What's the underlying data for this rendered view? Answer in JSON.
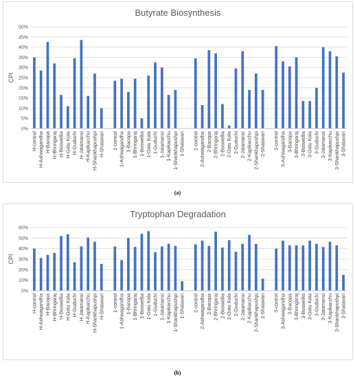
{
  "chart_data": [
    {
      "type": "bar",
      "title": "Butyrate Biosynthesis",
      "ylabel": "CPI",
      "ylim": [
        0,
        0.5
      ],
      "yticks": [
        "0%",
        "5%",
        "10%",
        "15%",
        "20%",
        "25%",
        "30%",
        "35%",
        "40%",
        "45%",
        "50%"
      ],
      "color": "#4472C4",
      "groups": [
        {
          "categories": [
            "H-control",
            "H-Ashwagandha",
            "H-Bacopa",
            "H-Bhringaraj",
            "H-Boswellia",
            "H-Gotu Kola",
            "H-Guduchi",
            "H-Jatamansi",
            "H-Kapikacchu",
            "H-Shankhapushpi",
            "H-Shatavari"
          ],
          "values": [
            0.35,
            0.285,
            0.425,
            0.32,
            0.165,
            0.11,
            0.345,
            0.435,
            0.16,
            0.27,
            0.1
          ]
        },
        {
          "categories": [
            "1-control",
            "1-Ashwagandha",
            "1-Bacopa",
            "1-Bhringaraj",
            "1-Boswellia",
            "1-Gotu Kola",
            "1-Guduchi",
            "1-Jatamansi",
            "1-Kapikacchu",
            "1-Shankhapushpi",
            "1-Shatavari"
          ],
          "values": [
            0.235,
            0.245,
            0.18,
            0.245,
            0.05,
            0.26,
            0.325,
            0.3,
            0.165,
            0.19,
            0
          ]
        },
        {
          "categories": [
            "2-control",
            "2-Ashwagandha",
            "2-Bacopa",
            "2-Bhringaraj",
            "2-Boswellia",
            "2-Gotu Kola",
            "2-Guduchi",
            "2-Jatamansi",
            "2-Kapikacchu",
            "2-Shankhapushpi",
            "2-Shatavari"
          ],
          "values": [
            0.345,
            0.115,
            0.385,
            0.37,
            0.12,
            0.015,
            0.295,
            0.38,
            0.19,
            0.27,
            0.19
          ]
        },
        {
          "categories": [
            "3-control",
            "3-Ashwagandha",
            "3-Bacopa",
            "3-Bhringaraj",
            "3-Boswellia",
            "3-Gotu Kola",
            "3-Guduchi",
            "3-Jatamansi",
            "3-Kapikacchu",
            "3-Shankhapushpi",
            "3-Shatavari"
          ],
          "values": [
            0.405,
            0.33,
            0.305,
            0.35,
            0.135,
            0.135,
            0.2,
            0.4,
            0.38,
            0.355,
            0.275
          ]
        }
      ]
    },
    {
      "type": "bar",
      "title": "Tryptophan Degradation",
      "ylabel": "CPI",
      "ylim": [
        0,
        0.6
      ],
      "yticks": [
        "0%",
        "10%",
        "20%",
        "30%",
        "40%",
        "50%",
        "60%"
      ],
      "color": "#4472C4",
      "groups": [
        {
          "categories": [
            "H-control",
            "H-Ashwagandha",
            "H-Bacopa",
            "H-Bhringaraj",
            "H-Boswellia",
            "H-Gotu Kola",
            "H-Guduchi",
            "H-Jatamansi",
            "H-Kapikacchu",
            "H-Shankhapushpi",
            "H-Shatavari"
          ],
          "values": [
            0.4,
            0.31,
            0.34,
            0.36,
            0.52,
            0.535,
            0.27,
            0.42,
            0.505,
            0.465,
            0.255
          ]
        },
        {
          "categories": [
            "1-control",
            "1-Ashwagandha",
            "1-Bacopa",
            "1-Bhringaraj",
            "1-Boswellia",
            "1-Gotu Kola",
            "1-Guduchi",
            "1-Jatamansi",
            "1-Kapikacchu",
            "1-Shankhapushpi",
            "1-Shatavari"
          ],
          "values": [
            0.42,
            0.29,
            0.5,
            0.415,
            0.54,
            0.565,
            0.365,
            0.42,
            0.445,
            0.425,
            0.09
          ]
        },
        {
          "categories": [
            "2-control",
            "2-Ashwagandha",
            "2-Bacopa",
            "2-Bhringaraj",
            "2-Boswellia",
            "2-Gotu Kola",
            "2-Guduchi",
            "2-Jatamansi",
            "2-Kapikacchu",
            "2-Shankhapushpi",
            "2-Shatavari"
          ],
          "values": [
            0.44,
            0.475,
            0.425,
            0.56,
            0.41,
            0.48,
            0.37,
            0.445,
            0.53,
            0.445,
            0.115
          ]
        },
        {
          "categories": [
            "3-control",
            "3-Ashwagandha",
            "3-Bacopa",
            "3-Bhringaraj",
            "3-Boswellia",
            "3-Gotu Kola",
            "3-Guduchi",
            "3-Jatamansi",
            "3-Kapikacchu",
            "3-Shankhapushpi",
            "3-Shatavari"
          ],
          "values": [
            0.4,
            0.475,
            0.43,
            0.43,
            0.43,
            0.475,
            0.445,
            0.415,
            0.465,
            0.43,
            0.15
          ]
        }
      ]
    }
  ],
  "captions": [
    "(a)",
    "(b)"
  ]
}
